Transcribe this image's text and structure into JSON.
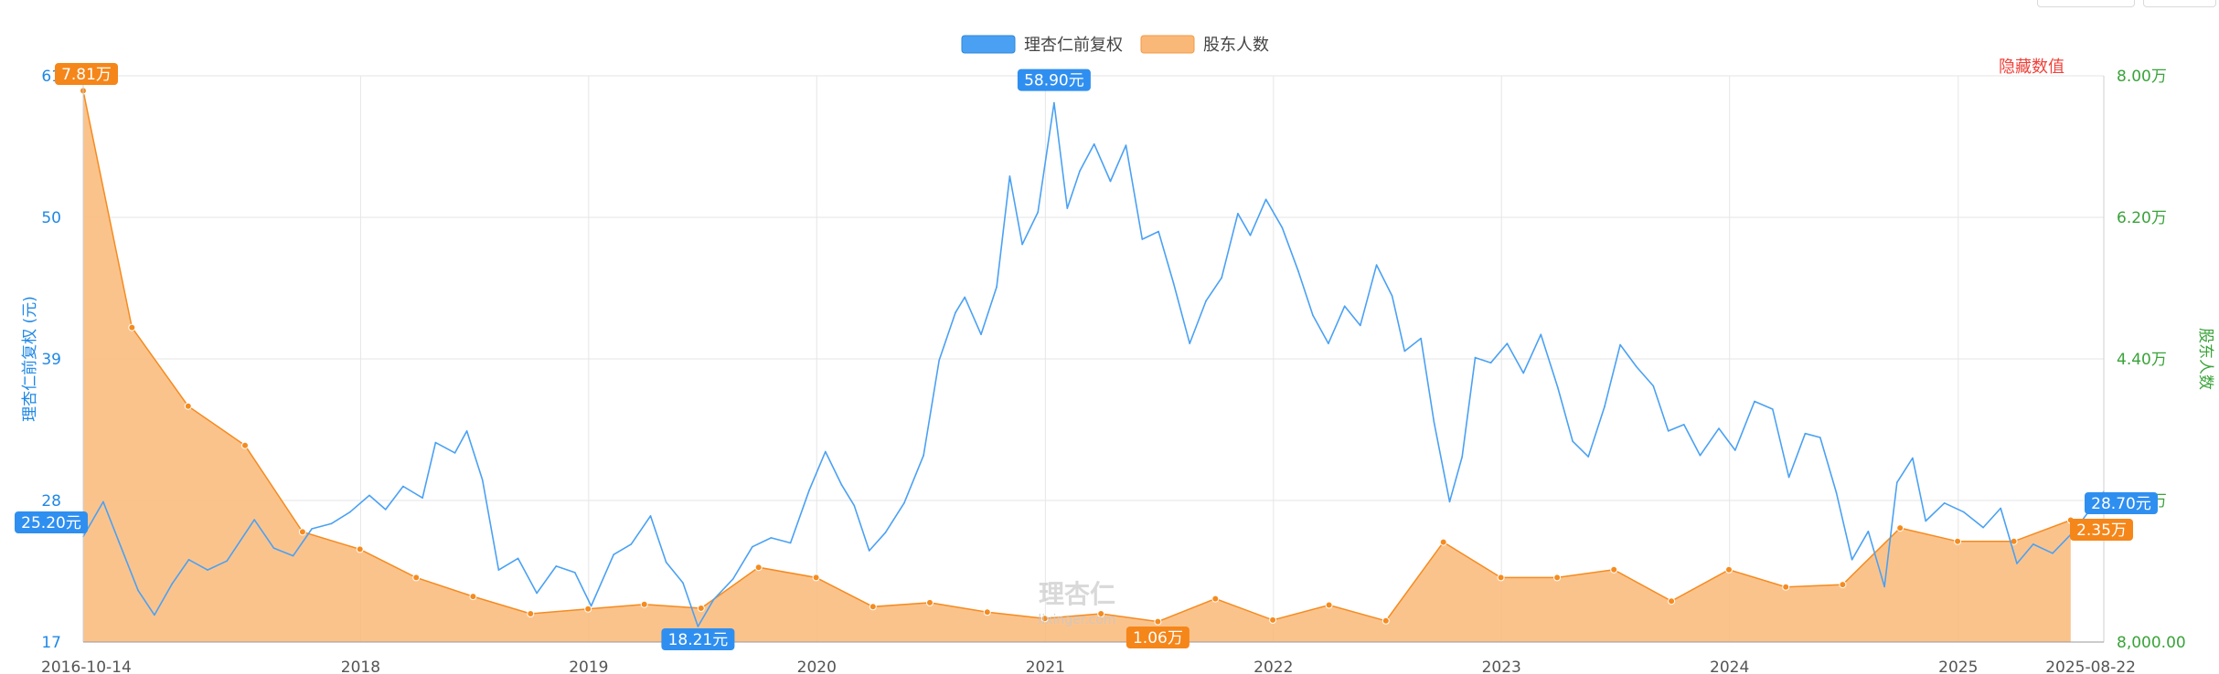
{
  "chart_data": {
    "type": "line",
    "legend": [
      {
        "name": "理杏仁前复权",
        "color": "#4aa1f4"
      },
      {
        "name": "股东人数",
        "color": "#fab878"
      }
    ],
    "legend_position": "top-center",
    "grid": true,
    "toggle_label": "隐藏数值",
    "toggle_color": "#f0423a",
    "watermark": {
      "logo": "理杏仁",
      "url": "lixinger.com"
    },
    "x_axis": {
      "type": "date",
      "range": [
        "2016-10-14",
        "2025-08-22"
      ],
      "ticks": [
        {
          "date": "2016-10-14",
          "label": "2016-10-14"
        },
        {
          "date": "2018-01-01",
          "label": "2018"
        },
        {
          "date": "2019-01-01",
          "label": "2019"
        },
        {
          "date": "2020-01-01",
          "label": "2020"
        },
        {
          "date": "2021-01-01",
          "label": "2021"
        },
        {
          "date": "2022-01-01",
          "label": "2022"
        },
        {
          "date": "2023-01-01",
          "label": "2023"
        },
        {
          "date": "2024-01-01",
          "label": "2024"
        },
        {
          "date": "2025-01-01",
          "label": "2025"
        },
        {
          "date": "2025-08-22",
          "label": "2025-08-22"
        }
      ]
    },
    "y_left": {
      "label": "理杏仁前复权 (元)",
      "range": [
        17,
        61
      ],
      "ticks": [
        "61",
        "50",
        "39",
        "28",
        "17"
      ],
      "color": "#1f88e5"
    },
    "y_right": {
      "label": "股东人数",
      "range": [
        8000,
        80000
      ],
      "ticks": [
        "8.00万",
        "6.20万",
        "4.40万",
        "2.60万",
        "8,000.00"
      ],
      "color": "#3aa33a"
    },
    "series": [
      {
        "name": "理杏仁前复权",
        "axis": "left",
        "color": "#4aa1f4",
        "points": [
          [
            "2016-10-14",
            25.2
          ],
          [
            "2016-11-15",
            27.9
          ],
          [
            "2016-12-10",
            24.8
          ],
          [
            "2017-01-10",
            21.0
          ],
          [
            "2017-02-05",
            19.1
          ],
          [
            "2017-03-05",
            21.5
          ],
          [
            "2017-04-01",
            23.4
          ],
          [
            "2017-05-01",
            22.6
          ],
          [
            "2017-06-01",
            23.3
          ],
          [
            "2017-07-15",
            26.5
          ],
          [
            "2017-08-15",
            24.3
          ],
          [
            "2017-09-15",
            23.7
          ],
          [
            "2017-10-15",
            25.8
          ],
          [
            "2017-11-15",
            26.2
          ],
          [
            "2017-12-15",
            27.1
          ],
          [
            "2018-01-15",
            28.4
          ],
          [
            "2018-02-10",
            27.3
          ],
          [
            "2018-03-10",
            29.1
          ],
          [
            "2018-04-10",
            28.2
          ],
          [
            "2018-05-01",
            32.5
          ],
          [
            "2018-06-01",
            31.7
          ],
          [
            "2018-06-20",
            33.4
          ],
          [
            "2018-07-15",
            29.6
          ],
          [
            "2018-08-10",
            22.6
          ],
          [
            "2018-09-10",
            23.5
          ],
          [
            "2018-10-10",
            20.8
          ],
          [
            "2018-11-10",
            22.9
          ],
          [
            "2018-12-10",
            22.4
          ],
          [
            "2019-01-05",
            19.8
          ],
          [
            "2019-02-10",
            23.8
          ],
          [
            "2019-03-10",
            24.6
          ],
          [
            "2019-04-10",
            26.8
          ],
          [
            "2019-05-05",
            23.2
          ],
          [
            "2019-06-01",
            21.6
          ],
          [
            "2019-06-25",
            18.21
          ],
          [
            "2019-07-20",
            20.3
          ],
          [
            "2019-08-20",
            21.9
          ],
          [
            "2019-09-20",
            24.4
          ],
          [
            "2019-10-20",
            25.1
          ],
          [
            "2019-11-20",
            24.7
          ],
          [
            "2019-12-20",
            28.8
          ],
          [
            "2020-01-15",
            31.8
          ],
          [
            "2020-02-10",
            29.2
          ],
          [
            "2020-03-01",
            27.6
          ],
          [
            "2020-03-25",
            24.1
          ],
          [
            "2020-04-20",
            25.5
          ],
          [
            "2020-05-20",
            27.8
          ],
          [
            "2020-06-20",
            31.5
          ],
          [
            "2020-07-15",
            38.9
          ],
          [
            "2020-08-10",
            42.6
          ],
          [
            "2020-08-25",
            43.8
          ],
          [
            "2020-09-20",
            40.9
          ],
          [
            "2020-10-15",
            44.6
          ],
          [
            "2020-11-05",
            53.2
          ],
          [
            "2020-11-25",
            47.9
          ],
          [
            "2020-12-20",
            50.4
          ],
          [
            "2021-01-15",
            58.9
          ],
          [
            "2021-02-05",
            50.7
          ],
          [
            "2021-02-25",
            53.6
          ],
          [
            "2021-03-20",
            55.7
          ],
          [
            "2021-04-15",
            52.8
          ],
          [
            "2021-05-10",
            55.6
          ],
          [
            "2021-06-05",
            48.3
          ],
          [
            "2021-07-01",
            48.9
          ],
          [
            "2021-07-25",
            44.9
          ],
          [
            "2021-08-20",
            40.2
          ],
          [
            "2021-09-15",
            43.5
          ],
          [
            "2021-10-10",
            45.3
          ],
          [
            "2021-11-05",
            50.3
          ],
          [
            "2021-11-25",
            48.6
          ],
          [
            "2021-12-20",
            51.4
          ],
          [
            "2022-01-15",
            49.2
          ],
          [
            "2022-02-10",
            45.8
          ],
          [
            "2022-03-05",
            42.4
          ],
          [
            "2022-03-30",
            40.2
          ],
          [
            "2022-04-25",
            43.1
          ],
          [
            "2022-05-20",
            41.6
          ],
          [
            "2022-06-15",
            46.3
          ],
          [
            "2022-07-10",
            43.9
          ],
          [
            "2022-07-30",
            39.6
          ],
          [
            "2022-08-25",
            40.6
          ],
          [
            "2022-09-15",
            34.1
          ],
          [
            "2022-10-10",
            27.9
          ],
          [
            "2022-10-30",
            31.4
          ],
          [
            "2022-11-20",
            39.1
          ],
          [
            "2022-12-15",
            38.7
          ],
          [
            "2023-01-10",
            40.2
          ],
          [
            "2023-02-05",
            37.9
          ],
          [
            "2023-03-05",
            40.9
          ],
          [
            "2023-04-01",
            36.8
          ],
          [
            "2023-04-25",
            32.6
          ],
          [
            "2023-05-20",
            31.4
          ],
          [
            "2023-06-15",
            35.3
          ],
          [
            "2023-07-10",
            40.1
          ],
          [
            "2023-08-05",
            38.4
          ],
          [
            "2023-09-01",
            36.9
          ],
          [
            "2023-09-25",
            33.4
          ],
          [
            "2023-10-20",
            33.9
          ],
          [
            "2023-11-15",
            31.5
          ],
          [
            "2023-12-15",
            33.6
          ],
          [
            "2024-01-10",
            31.9
          ],
          [
            "2024-02-10",
            35.7
          ],
          [
            "2024-03-10",
            35.1
          ],
          [
            "2024-04-05",
            29.8
          ],
          [
            "2024-05-01",
            33.2
          ],
          [
            "2024-05-25",
            32.9
          ],
          [
            "2024-06-20",
            28.6
          ],
          [
            "2024-07-15",
            23.4
          ],
          [
            "2024-08-10",
            25.6
          ],
          [
            "2024-09-05",
            21.3
          ],
          [
            "2024-09-25",
            29.4
          ],
          [
            "2024-10-20",
            31.3
          ],
          [
            "2024-11-10",
            26.4
          ],
          [
            "2024-12-10",
            27.8
          ],
          [
            "2025-01-10",
            27.1
          ],
          [
            "2025-02-10",
            25.9
          ],
          [
            "2025-03-10",
            27.4
          ],
          [
            "2025-04-05",
            23.1
          ],
          [
            "2025-05-01",
            24.6
          ],
          [
            "2025-06-01",
            23.9
          ],
          [
            "2025-07-05",
            25.6
          ],
          [
            "2025-08-22",
            28.7
          ]
        ]
      },
      {
        "name": "股东人数",
        "axis": "right",
        "color": "#f58b1f",
        "fill": "#fab878",
        "points": [
          [
            "2016-10-14",
            78100
          ],
          [
            "2016-12-31",
            48000
          ],
          [
            "2017-03-31",
            38000
          ],
          [
            "2017-06-30",
            33000
          ],
          [
            "2017-09-30",
            22000
          ],
          [
            "2017-12-31",
            19800
          ],
          [
            "2018-03-31",
            16200
          ],
          [
            "2018-06-30",
            13800
          ],
          [
            "2018-09-30",
            11600
          ],
          [
            "2018-12-31",
            12200
          ],
          [
            "2019-03-31",
            12800
          ],
          [
            "2019-06-30",
            12300
          ],
          [
            "2019-09-30",
            17500
          ],
          [
            "2019-12-31",
            16200
          ],
          [
            "2020-03-31",
            12500
          ],
          [
            "2020-06-30",
            13000
          ],
          [
            "2020-09-30",
            11800
          ],
          [
            "2020-12-31",
            11000
          ],
          [
            "2021-03-31",
            11600
          ],
          [
            "2021-06-30",
            10600
          ],
          [
            "2021-09-30",
            13500
          ],
          [
            "2021-12-31",
            10800
          ],
          [
            "2022-03-31",
            12700
          ],
          [
            "2022-06-30",
            10700
          ],
          [
            "2022-09-30",
            20700
          ],
          [
            "2022-12-31",
            16200
          ],
          [
            "2023-03-31",
            16200
          ],
          [
            "2023-06-30",
            17200
          ],
          [
            "2023-09-30",
            13200
          ],
          [
            "2023-12-31",
            17200
          ],
          [
            "2024-03-31",
            15000
          ],
          [
            "2024-06-30",
            15300
          ],
          [
            "2024-09-30",
            22500
          ],
          [
            "2024-12-31",
            20800
          ],
          [
            "2025-03-31",
            20800
          ],
          [
            "2025-06-30",
            23500
          ]
        ]
      }
    ],
    "annotations": [
      {
        "series": "股东人数",
        "date": "2016-10-14",
        "value": 78100,
        "label": "7.81万",
        "role": "max"
      },
      {
        "series": "理杏仁前复权",
        "date": "2021-01-15",
        "value": 58.9,
        "label": "58.90元",
        "role": "max"
      },
      {
        "series": "理杏仁前复权",
        "date": "2016-10-14",
        "value": 25.2,
        "label": "25.20元",
        "role": "start"
      },
      {
        "series": "理杏仁前复权",
        "date": "2019-06-25",
        "value": 18.21,
        "label": "18.21元",
        "role": "min"
      },
      {
        "series": "股东人数",
        "date": "2021-06-30",
        "value": 10600,
        "label": "1.06万",
        "role": "min"
      },
      {
        "series": "理杏仁前复权",
        "date": "2025-08-22",
        "value": 28.7,
        "label": "28.70元",
        "role": "latest"
      },
      {
        "series": "股东人数",
        "date": "2025-06-30",
        "value": 23500,
        "label": "2.35万",
        "role": "latest"
      }
    ]
  }
}
